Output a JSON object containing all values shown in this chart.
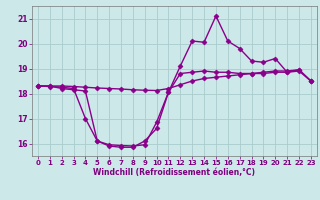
{
  "line1": {
    "x": [
      0,
      1,
      2,
      3,
      4,
      5,
      6,
      7,
      8,
      9,
      10,
      11,
      12,
      13,
      14,
      15,
      16,
      17,
      18,
      19,
      20,
      21,
      22,
      23
    ],
    "y": [
      18.3,
      18.3,
      18.2,
      18.15,
      18.1,
      16.1,
      15.9,
      15.85,
      15.85,
      16.1,
      16.6,
      18.05,
      19.1,
      20.1,
      20.05,
      21.1,
      20.1,
      19.8,
      19.3,
      19.25,
      19.4,
      18.85,
      18.95,
      18.5
    ]
  },
  "line2": {
    "x": [
      0,
      1,
      2,
      3,
      4,
      5,
      6,
      7,
      8,
      9,
      10,
      11,
      12,
      13,
      14,
      15,
      16,
      17,
      18,
      19,
      20,
      21,
      22,
      23
    ],
    "y": [
      18.3,
      18.28,
      18.25,
      18.2,
      17.0,
      16.1,
      15.95,
      15.92,
      15.9,
      15.95,
      16.85,
      18.05,
      18.8,
      18.85,
      18.9,
      18.85,
      18.85,
      18.8,
      18.8,
      18.8,
      18.85,
      18.85,
      18.9,
      18.5
    ]
  },
  "line3": {
    "x": [
      0,
      1,
      2,
      3,
      4,
      5,
      6,
      7,
      8,
      9,
      10,
      11,
      12,
      13,
      14,
      15,
      16,
      17,
      18,
      19,
      20,
      21,
      22,
      23
    ],
    "y": [
      18.3,
      18.3,
      18.3,
      18.28,
      18.25,
      18.22,
      18.2,
      18.18,
      18.15,
      18.13,
      18.12,
      18.2,
      18.35,
      18.5,
      18.6,
      18.65,
      18.7,
      18.75,
      18.8,
      18.85,
      18.9,
      18.9,
      18.95,
      18.5
    ]
  },
  "color": "#8b008b",
  "marker": "D",
  "markersize": 2.5,
  "linewidth": 1.0,
  "bg_color": "#cce8e8",
  "grid_color": "#aacccc",
  "xlabel": "Windchill (Refroidissement éolien,°C)",
  "ylim": [
    15.5,
    21.5
  ],
  "xlim": [
    -0.5,
    23.5
  ],
  "yticks": [
    16,
    17,
    18,
    19,
    20,
    21
  ],
  "xticks": [
    0,
    1,
    2,
    3,
    4,
    5,
    6,
    7,
    8,
    9,
    10,
    11,
    12,
    13,
    14,
    15,
    16,
    17,
    18,
    19,
    20,
    21,
    22,
    23
  ],
  "tick_color": "#800080",
  "label_fontsize": 5.5,
  "tick_fontsize": 5.0
}
